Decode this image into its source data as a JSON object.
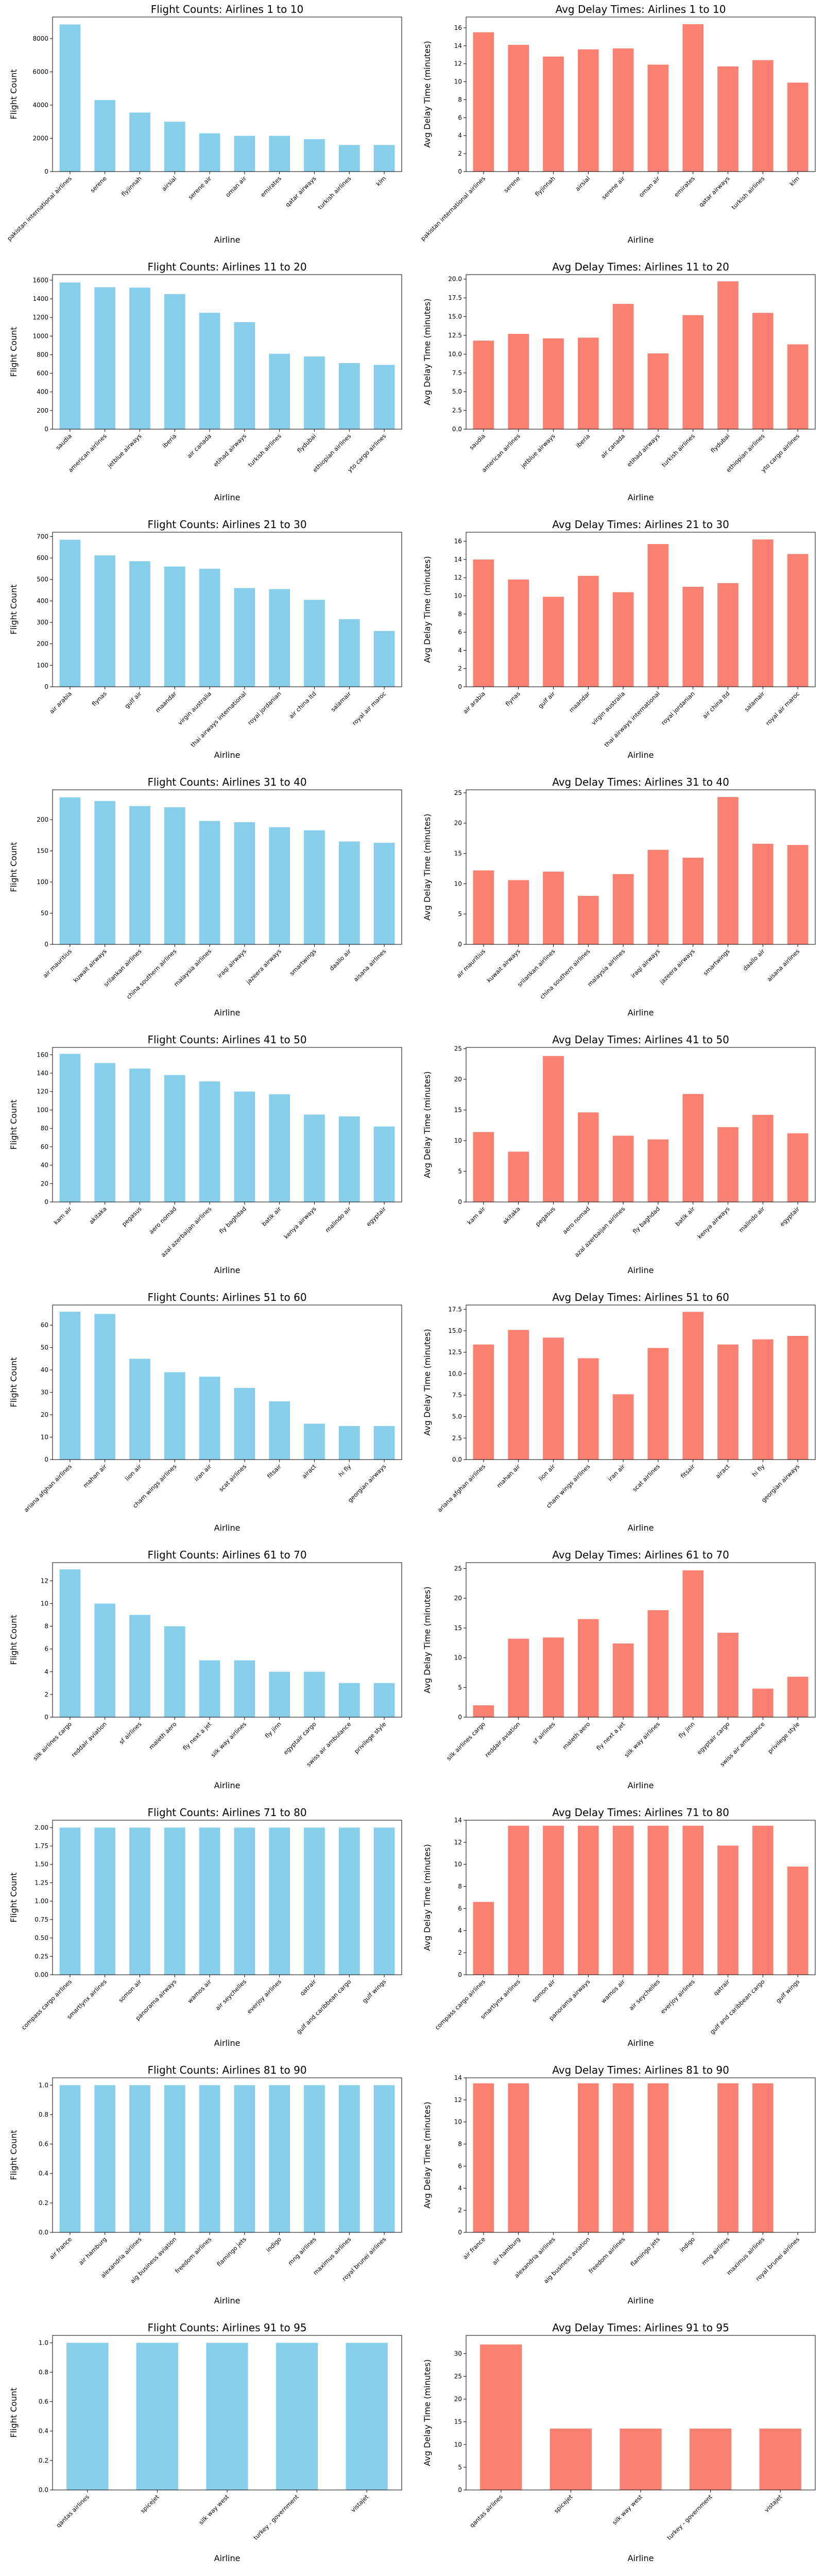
{
  "colors": {
    "flight_bar": "#87CEEB",
    "delay_bar": "#FA8072"
  },
  "chart_data": [
    {
      "type": "bar",
      "title": "Flight Counts: Airlines 1 to 10",
      "xlabel": "Airline",
      "ylabel": "Flight Count",
      "ylim": [
        0,
        9300
      ],
      "yticks": [
        0,
        2000,
        4000,
        6000,
        8000
      ],
      "ytick_labels": [
        "0",
        "2000",
        "4000",
        "6000",
        "8000"
      ],
      "categories": [
        "pakistan international airlines",
        "serene",
        "flyjinnah",
        "airsial",
        "serene air",
        "oman air",
        "emirates",
        "qatar airways",
        "turkish airlines",
        "klm"
      ],
      "values": [
        8850,
        4300,
        3550,
        3000,
        2300,
        2150,
        2150,
        1950,
        1600,
        1600
      ]
    },
    {
      "type": "bar",
      "title": "Avg Delay Times: Airlines 1 to 10",
      "xlabel": "Airline",
      "ylabel": "Avg Delay Time (minutes)",
      "ylim": [
        0,
        17.2
      ],
      "yticks": [
        0,
        2,
        4,
        6,
        8,
        10,
        12,
        14,
        16
      ],
      "ytick_labels": [
        "0",
        "2",
        "4",
        "6",
        "8",
        "10",
        "12",
        "14",
        "16"
      ],
      "categories": [
        "pakistan international airlines",
        "serene",
        "flyjinnah",
        "airsial",
        "serene air",
        "oman air",
        "emirates",
        "qatar airways",
        "turkish airlines",
        "klm"
      ],
      "values": [
        15.5,
        14.1,
        12.8,
        13.6,
        13.7,
        11.9,
        16.4,
        11.7,
        12.4,
        9.9
      ]
    },
    {
      "type": "bar",
      "title": "Flight Counts: Airlines 11 to 20",
      "xlabel": "Airline",
      "ylabel": "Flight Count",
      "ylim": [
        0,
        1660
      ],
      "yticks": [
        0,
        200,
        400,
        600,
        800,
        1000,
        1200,
        1400,
        1600
      ],
      "ytick_labels": [
        "0",
        "200",
        "400",
        "600",
        "800",
        "1000",
        "1200",
        "1400",
        "1600"
      ],
      "categories": [
        "saudia",
        "american airlines",
        "jetblue airways",
        "iberia",
        "air canada",
        "etihad airways",
        "turkish airlines",
        "flydubai",
        "ethiopian airlines",
        "yto cargo airlines"
      ],
      "values": [
        1575,
        1525,
        1520,
        1450,
        1250,
        1150,
        810,
        780,
        710,
        690
      ]
    },
    {
      "type": "bar",
      "title": "Avg Delay Times: Airlines 11 to 20",
      "xlabel": "Airline",
      "ylabel": "Avg Delay Time (minutes)",
      "ylim": [
        0,
        20.6
      ],
      "yticks": [
        0,
        2.5,
        5,
        7.5,
        10,
        12.5,
        15,
        17.5,
        20
      ],
      "ytick_labels": [
        "0.0",
        "2.5",
        "5.0",
        "7.5",
        "10.0",
        "12.5",
        "15.0",
        "17.5",
        "20.0"
      ],
      "categories": [
        "saudia",
        "american airlines",
        "jetblue airways",
        "iberia",
        "air canada",
        "etihad airways",
        "turkish airlines",
        "flydubai",
        "ethiopian airlines",
        "yto cargo airlines"
      ],
      "values": [
        11.8,
        12.7,
        12.1,
        12.2,
        16.7,
        10.1,
        15.2,
        19.7,
        15.5,
        11.3
      ]
    },
    {
      "type": "bar",
      "title": "Flight Counts: Airlines 21 to 30",
      "xlabel": "Airline",
      "ylabel": "Flight Count",
      "ylim": [
        0,
        720
      ],
      "yticks": [
        0,
        100,
        200,
        300,
        400,
        500,
        600,
        700
      ],
      "ytick_labels": [
        "0",
        "100",
        "200",
        "300",
        "400",
        "500",
        "600",
        "700"
      ],
      "categories": [
        "air arabia",
        "flynas",
        "gulf air",
        "maandar",
        "virgin australia",
        "thai airways international",
        "royal jordanian",
        "air china ltd",
        "salamair",
        "royal air maroc"
      ],
      "values": [
        685,
        612,
        585,
        560,
        550,
        460,
        455,
        405,
        315,
        260
      ]
    },
    {
      "type": "bar",
      "title": "Avg Delay Times: Airlines 21 to 30",
      "xlabel": "Airline",
      "ylabel": "Avg Delay Time (minutes)",
      "ylim": [
        0,
        17
      ],
      "yticks": [
        0,
        2,
        4,
        6,
        8,
        10,
        12,
        14,
        16
      ],
      "ytick_labels": [
        "0",
        "2",
        "4",
        "6",
        "8",
        "10",
        "12",
        "14",
        "16"
      ],
      "categories": [
        "air arabia",
        "flynas",
        "gulf air",
        "maandar",
        "virgin australia",
        "thai airways international",
        "royal jordanian",
        "air china ltd",
        "salamair",
        "royal air maroc"
      ],
      "values": [
        14.0,
        11.8,
        9.9,
        12.2,
        10.4,
        15.7,
        11.0,
        11.4,
        16.2,
        14.6
      ]
    },
    {
      "type": "bar",
      "title": "Flight Counts: Airlines 31 to 40",
      "xlabel": "Airline",
      "ylabel": "Flight Count",
      "ylim": [
        0,
        248
      ],
      "yticks": [
        0,
        50,
        100,
        150,
        200
      ],
      "ytick_labels": [
        "0",
        "50",
        "100",
        "150",
        "200"
      ],
      "categories": [
        "air mauritius",
        "kuwait airways",
        "srilankan airlines",
        "china southern airlines",
        "malaysia airlines",
        "iraqi airways",
        "jazeera airways",
        "smartwings",
        "daallo air",
        "aisana airlines"
      ],
      "values": [
        236,
        230,
        222,
        220,
        198,
        196,
        188,
        183,
        165,
        163
      ]
    },
    {
      "type": "bar",
      "title": "Avg Delay Times: Airlines 31 to 40",
      "xlabel": "Airline",
      "ylabel": "Avg Delay Time (minutes)",
      "ylim": [
        0,
        25.5
      ],
      "yticks": [
        0,
        5,
        10,
        15,
        20,
        25
      ],
      "ytick_labels": [
        "0",
        "5",
        "10",
        "15",
        "20",
        "25"
      ],
      "categories": [
        "air mauritius",
        "kuwait airways",
        "srilankan airlines",
        "china southern airlines",
        "malaysia airlines",
        "iraqi airways",
        "jazeera airways",
        "smartwings",
        "daallo air",
        "aisana airlines"
      ],
      "values": [
        12.2,
        10.6,
        12.0,
        8.0,
        11.6,
        15.6,
        14.3,
        24.3,
        16.6,
        16.4
      ]
    },
    {
      "type": "bar",
      "title": "Flight Counts: Airlines 41 to 50",
      "xlabel": "Airline",
      "ylabel": "Flight Count",
      "ylim": [
        0,
        168
      ],
      "yticks": [
        0,
        20,
        40,
        60,
        80,
        100,
        120,
        140,
        160
      ],
      "ytick_labels": [
        "0",
        "20",
        "40",
        "60",
        "80",
        "100",
        "120",
        "140",
        "160"
      ],
      "categories": [
        "kam air",
        "akitaka",
        "pegasus",
        "aero nomad",
        "azal azerbaijan airlines",
        "fly baghdad",
        "batik air",
        "kenya airways",
        "malindo air",
        "egyptair"
      ],
      "values": [
        161,
        151,
        145,
        138,
        131,
        120,
        117,
        95,
        93,
        82
      ]
    },
    {
      "type": "bar",
      "title": "Avg Delay Times: Airlines 41 to 50",
      "xlabel": "Airline",
      "ylabel": "Avg Delay Time (minutes)",
      "ylim": [
        0,
        25.2
      ],
      "yticks": [
        0,
        5,
        10,
        15,
        20,
        25
      ],
      "ytick_labels": [
        "0",
        "5",
        "10",
        "15",
        "20",
        "25"
      ],
      "categories": [
        "kam air",
        "akitaka",
        "pegasus",
        "aero nomad",
        "azal azerbaijan airlines",
        "fly baghdad",
        "batik air",
        "kenya airways",
        "malindo air",
        "egyptair"
      ],
      "values": [
        11.4,
        8.2,
        23.8,
        14.6,
        10.8,
        10.2,
        17.6,
        12.2,
        14.2,
        11.2
      ]
    },
    {
      "type": "bar",
      "title": "Flight Counts: Airlines 51 to 60",
      "xlabel": "Airline",
      "ylabel": "Flight Count",
      "ylim": [
        0,
        69
      ],
      "yticks": [
        0,
        10,
        20,
        30,
        40,
        50,
        60
      ],
      "ytick_labels": [
        "0",
        "10",
        "20",
        "30",
        "40",
        "50",
        "60"
      ],
      "categories": [
        "ariana afghan airlines",
        "mahan air",
        "lion air",
        "cham wings airlines",
        "iran air",
        "scat airlines",
        "fitsair",
        "airact",
        "hi fly",
        "georgian airways"
      ],
      "values": [
        66,
        65,
        45,
        39,
        37,
        32,
        26,
        16,
        15,
        15
      ]
    },
    {
      "type": "bar",
      "title": "Avg Delay Times: Airlines 51 to 60",
      "xlabel": "Airline",
      "ylabel": "Avg Delay Time (minutes)",
      "ylim": [
        0,
        18
      ],
      "yticks": [
        0,
        2.5,
        5,
        7.5,
        10,
        12.5,
        15,
        17.5
      ],
      "ytick_labels": [
        "0.0",
        "2.5",
        "5.0",
        "7.5",
        "10.0",
        "12.5",
        "15.0",
        "17.5"
      ],
      "categories": [
        "ariana afghan airlines",
        "mahan air",
        "lion air",
        "cham wings airlines",
        "iran air",
        "scat airlines",
        "fitsair",
        "airact",
        "hi fly",
        "georgian airways"
      ],
      "values": [
        13.4,
        15.1,
        14.2,
        11.8,
        7.6,
        13.0,
        17.2,
        13.4,
        14.0,
        14.4
      ]
    },
    {
      "type": "bar",
      "title": "Flight Counts: Airlines 61 to 70",
      "xlabel": "Airline",
      "ylabel": "Flight Count",
      "ylim": [
        0,
        13.6
      ],
      "yticks": [
        0,
        2,
        4,
        6,
        8,
        10,
        12
      ],
      "ytick_labels": [
        "0",
        "2",
        "4",
        "6",
        "8",
        "10",
        "12"
      ],
      "categories": [
        "silk airlines cargo",
        "reddair aviation",
        "sf airlines",
        "maleth aero",
        "fly next a jet",
        "silk way airlines",
        "fly jinn",
        "egyptair cargo",
        "swiss air ambulance",
        "privilege style"
      ],
      "values": [
        13,
        10,
        9,
        8,
        5,
        5,
        4,
        4,
        3,
        3
      ]
    },
    {
      "type": "bar",
      "title": "Avg Delay Times: Airlines 61 to 70",
      "xlabel": "Airline",
      "ylabel": "Avg Delay Time (minutes)",
      "ylim": [
        0,
        26
      ],
      "yticks": [
        0,
        5,
        10,
        15,
        20,
        25
      ],
      "ytick_labels": [
        "0",
        "5",
        "10",
        "15",
        "20",
        "25"
      ],
      "categories": [
        "silk airlines cargo",
        "reddair aviation",
        "sf airlines",
        "maleth aero",
        "fly next a jet",
        "silk way airlines",
        "fly jinn",
        "egyptair cargo",
        "swiss air ambulance",
        "privilege style"
      ],
      "values": [
        2.0,
        13.2,
        13.4,
        16.5,
        12.4,
        18.0,
        24.7,
        14.2,
        4.8,
        6.8
      ]
    },
    {
      "type": "bar",
      "title": "Flight Counts: Airlines 71 to 80",
      "xlabel": "Airline",
      "ylabel": "Flight Count",
      "ylim": [
        0,
        2.1
      ],
      "yticks": [
        0,
        0.25,
        0.5,
        0.75,
        1.0,
        1.25,
        1.5,
        1.75,
        2.0
      ],
      "ytick_labels": [
        "0.00",
        "0.25",
        "0.50",
        "0.75",
        "1.00",
        "1.25",
        "1.50",
        "1.75",
        "2.00"
      ],
      "categories": [
        "compass cargo airlines",
        "smartlynx airlines",
        "somon air",
        "panorama airways",
        "wamos air",
        "air seychelles",
        "everjoy airlines",
        "qatrair",
        "gulf and caribbean cargo",
        "gulf wings"
      ],
      "values": [
        2,
        2,
        2,
        2,
        2,
        2,
        2,
        2,
        2,
        2
      ]
    },
    {
      "type": "bar",
      "title": "Avg Delay Times: Airlines 71 to 80",
      "xlabel": "Airline",
      "ylabel": "Avg Delay Time (minutes)",
      "ylim": [
        0,
        14
      ],
      "yticks": [
        0,
        2,
        4,
        6,
        8,
        10,
        12,
        14
      ],
      "ytick_labels": [
        "0",
        "2",
        "4",
        "6",
        "8",
        "10",
        "12",
        "14"
      ],
      "categories": [
        "compass cargo airlines",
        "smartlynx airlines",
        "somon air",
        "panorama airways",
        "wamos air",
        "air seychelles",
        "everjoy airlines",
        "qatrair",
        "gulf and caribbean cargo",
        "gulf wings"
      ],
      "values": [
        6.6,
        13.5,
        13.5,
        13.5,
        13.5,
        13.5,
        13.5,
        11.7,
        13.5,
        9.8
      ]
    },
    {
      "type": "bar",
      "title": "Flight Counts: Airlines 81 to 90",
      "xlabel": "Airline",
      "ylabel": "Flight Count",
      "ylim": [
        0,
        1.05
      ],
      "yticks": [
        0,
        0.2,
        0.4,
        0.6,
        0.8,
        1.0
      ],
      "ytick_labels": [
        "0.0",
        "0.2",
        "0.4",
        "0.6",
        "0.8",
        "1.0"
      ],
      "categories": [
        "air france",
        "air hamburg",
        "alexandria airlines",
        "aig business aviation",
        "freedom airlines",
        "flamingo jets",
        "indigo",
        "mng airlines",
        "maximus airlines",
        "royal brunei airlines"
      ],
      "values": [
        1,
        1,
        1,
        1,
        1,
        1,
        1,
        1,
        1,
        1
      ]
    },
    {
      "type": "bar",
      "title": "Avg Delay Times: Airlines 81 to 90",
      "xlabel": "Airline",
      "ylabel": "Avg Delay Time (minutes)",
      "ylim": [
        0,
        14
      ],
      "yticks": [
        0,
        2,
        4,
        6,
        8,
        10,
        12,
        14
      ],
      "ytick_labels": [
        "0",
        "2",
        "4",
        "6",
        "8",
        "10",
        "12",
        "14"
      ],
      "categories": [
        "air france",
        "air hamburg",
        "alexandria airlines",
        "aig business aviation",
        "freedom airlines",
        "flamingo jets",
        "indigo",
        "mng airlines",
        "maximus airlines",
        "royal brunei airlines"
      ],
      "values": [
        13.5,
        13.5,
        0,
        13.5,
        13.5,
        13.5,
        0,
        13.5,
        13.5,
        0
      ]
    },
    {
      "type": "bar",
      "title": "Flight Counts: Airlines 91 to 95",
      "xlabel": "Airline",
      "ylabel": "Flight Count",
      "ylim": [
        0,
        1.05
      ],
      "yticks": [
        0,
        0.2,
        0.4,
        0.6,
        0.8,
        1.0
      ],
      "ytick_labels": [
        "0.0",
        "0.2",
        "0.4",
        "0.6",
        "0.8",
        "1.0"
      ],
      "categories": [
        "qantas airlines",
        "spicejet",
        "silk way west",
        "turkey - government",
        "vistajet"
      ],
      "values": [
        1,
        1,
        1,
        1,
        1
      ]
    },
    {
      "type": "bar",
      "title": "Avg Delay Times: Airlines 91 to 95",
      "xlabel": "Airline",
      "ylabel": "Avg Delay Time (minutes)",
      "ylim": [
        0,
        34
      ],
      "yticks": [
        0,
        5,
        10,
        15,
        20,
        25,
        30
      ],
      "ytick_labels": [
        "0",
        "5",
        "10",
        "15",
        "20",
        "25",
        "30"
      ],
      "categories": [
        "qantas airlines",
        "spicejet",
        "silk way west",
        "turkey - government",
        "vistajet"
      ],
      "values": [
        32.0,
        13.5,
        13.5,
        13.5,
        13.5
      ]
    }
  ]
}
